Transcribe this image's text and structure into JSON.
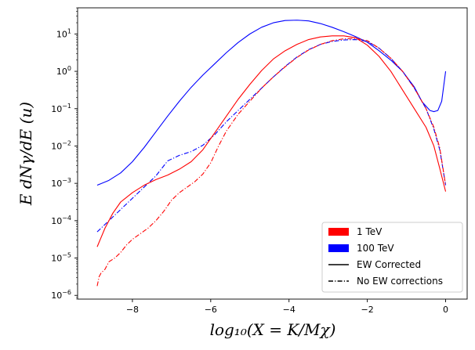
{
  "chart_data": {
    "type": "line",
    "xlabel": "log₁₀(X = K/Mχ)",
    "ylabel": "E dNγ/dE (u)",
    "xlim": [
      -9.4,
      0.55
    ],
    "ylim_log10": [
      -6.1,
      1.7
    ],
    "yscale": "log",
    "grid": false,
    "legend_position": "lower-right",
    "x_ticks": [
      {
        "value": -8,
        "label": "−8"
      },
      {
        "value": -6,
        "label": "−6"
      },
      {
        "value": -4,
        "label": "−4"
      },
      {
        "value": -2,
        "label": "−2"
      },
      {
        "value": 0,
        "label": "0"
      }
    ],
    "y_ticks": [
      {
        "exp": 1,
        "base": "10",
        "sup": "1"
      },
      {
        "exp": 0,
        "base": "10",
        "sup": "0"
      },
      {
        "exp": -1,
        "base": "10",
        "sup": "−1"
      },
      {
        "exp": -2,
        "base": "10",
        "sup": "−2"
      },
      {
        "exp": -3,
        "base": "10",
        "sup": "−3"
      },
      {
        "exp": -4,
        "base": "10",
        "sup": "−4"
      },
      {
        "exp": -5,
        "base": "10",
        "sup": "−5"
      },
      {
        "exp": -6,
        "base": "10",
        "sup": "−6"
      }
    ],
    "legend": [
      {
        "label": "1 TeV",
        "kind": "patch",
        "color": "#ff0000"
      },
      {
        "label": "100 TeV",
        "kind": "patch",
        "color": "#0000ff"
      },
      {
        "label": "EW Corrected",
        "kind": "line-solid",
        "color": "#000000"
      },
      {
        "label": "No EW corrections",
        "kind": "line-dashdot",
        "color": "#000000"
      }
    ],
    "series": [
      {
        "energy": "100 TeV",
        "ew": "corrected",
        "color": "#0000ff",
        "style": "solid",
        "x": [
          -8.9,
          -8.6,
          -8.3,
          -8.0,
          -7.7,
          -7.4,
          -7.1,
          -6.8,
          -6.5,
          -6.2,
          -5.9,
          -5.6,
          -5.3,
          -5.0,
          -4.7,
          -4.4,
          -4.1,
          -3.8,
          -3.5,
          -3.2,
          -2.9,
          -2.6,
          -2.3,
          -2.0,
          -1.7,
          -1.4,
          -1.1,
          -0.8,
          -0.6,
          -0.4,
          -0.3,
          -0.2,
          -0.1,
          -0.05,
          0.0
        ],
        "log10y": [
          -3.05,
          -2.92,
          -2.72,
          -2.42,
          -2.04,
          -1.62,
          -1.2,
          -0.8,
          -0.43,
          -0.1,
          0.2,
          0.5,
          0.77,
          1.0,
          1.18,
          1.3,
          1.36,
          1.37,
          1.35,
          1.28,
          1.18,
          1.06,
          0.93,
          0.78,
          0.55,
          0.3,
          0.0,
          -0.42,
          -0.82,
          -1.05,
          -1.08,
          -1.05,
          -0.8,
          -0.4,
          0.0
        ]
      },
      {
        "energy": "100 TeV",
        "ew": "none",
        "color": "#0000ff",
        "style": "dashdot",
        "x": [
          -8.9,
          -8.6,
          -8.3,
          -8.0,
          -7.7,
          -7.4,
          -7.1,
          -6.8,
          -6.5,
          -6.2,
          -5.9,
          -5.6,
          -5.3,
          -5.0,
          -4.7,
          -4.4,
          -4.1,
          -3.8,
          -3.5,
          -3.2,
          -2.9,
          -2.6,
          -2.3,
          -2.0,
          -1.7,
          -1.4,
          -1.1,
          -0.8,
          -0.5,
          -0.3,
          -0.15,
          0.0
        ],
        "log10y": [
          -4.3,
          -4.0,
          -3.7,
          -3.4,
          -3.1,
          -2.8,
          -2.4,
          -2.25,
          -2.15,
          -1.98,
          -1.7,
          -1.35,
          -1.05,
          -0.75,
          -0.45,
          -0.15,
          0.13,
          0.38,
          0.58,
          0.72,
          0.8,
          0.84,
          0.85,
          0.8,
          0.62,
          0.35,
          0.0,
          -0.45,
          -1.0,
          -1.55,
          -2.1,
          -3.05
        ]
      },
      {
        "energy": "1 TeV",
        "ew": "corrected",
        "color": "#ff0000",
        "style": "solid",
        "x": [
          -8.9,
          -8.7,
          -8.5,
          -8.3,
          -8.0,
          -7.7,
          -7.4,
          -7.1,
          -6.8,
          -6.5,
          -6.2,
          -5.9,
          -5.6,
          -5.3,
          -5.0,
          -4.7,
          -4.4,
          -4.1,
          -3.8,
          -3.5,
          -3.2,
          -2.9,
          -2.6,
          -2.3,
          -2.0,
          -1.7,
          -1.4,
          -1.1,
          -0.8,
          -0.5,
          -0.3,
          -0.15,
          0.0
        ],
        "log10y": [
          -4.7,
          -4.2,
          -3.8,
          -3.5,
          -3.25,
          -3.05,
          -2.9,
          -2.78,
          -2.62,
          -2.42,
          -2.1,
          -1.65,
          -1.2,
          -0.75,
          -0.35,
          0.02,
          0.33,
          0.55,
          0.72,
          0.85,
          0.92,
          0.95,
          0.95,
          0.9,
          0.7,
          0.4,
          0.0,
          -0.5,
          -1.0,
          -1.5,
          -2.0,
          -2.6,
          -3.22
        ]
      },
      {
        "energy": "1 TeV",
        "ew": "none",
        "color": "#ff0000",
        "style": "dashdot",
        "x": [
          -8.9,
          -8.85,
          -8.8,
          -8.7,
          -8.6,
          -8.45,
          -8.3,
          -8.15,
          -8.0,
          -7.8,
          -7.6,
          -7.4,
          -7.2,
          -7.0,
          -6.8,
          -6.6,
          -6.4,
          -6.2,
          -6.0,
          -5.8,
          -5.6,
          -5.3,
          -5.0,
          -4.7,
          -4.4,
          -4.1,
          -3.8,
          -3.5,
          -3.2,
          -2.9,
          -2.6,
          -2.3,
          -2.0,
          -1.7,
          -1.4,
          -1.1,
          -0.8,
          -0.5,
          -0.3,
          -0.15,
          0.0
        ],
        "log10y": [
          -5.75,
          -5.5,
          -5.4,
          -5.3,
          -5.1,
          -5.0,
          -4.85,
          -4.65,
          -4.5,
          -4.35,
          -4.2,
          -4.0,
          -3.75,
          -3.45,
          -3.25,
          -3.1,
          -2.95,
          -2.75,
          -2.45,
          -2.0,
          -1.6,
          -1.15,
          -0.8,
          -0.45,
          -0.15,
          0.12,
          0.37,
          0.57,
          0.72,
          0.82,
          0.87,
          0.88,
          0.82,
          0.62,
          0.35,
          0.0,
          -0.45,
          -1.0,
          -1.5,
          -2.05,
          -3.05
        ]
      }
    ]
  }
}
